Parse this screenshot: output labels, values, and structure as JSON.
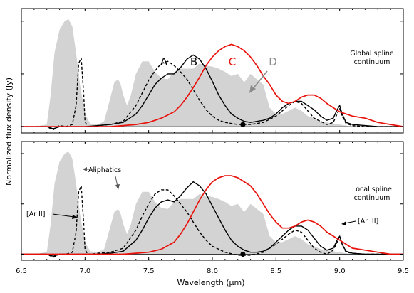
{
  "chart_data": {
    "type": "line",
    "xlabel": "Wavelength (μm)",
    "ylabel": "Normalized flux density (Jy)",
    "xlim": [
      6.5,
      9.5
    ],
    "xticks": [
      "6.5",
      "7.0",
      "7.5",
      "8.0",
      "8.5",
      "9.0",
      "9.5"
    ],
    "grid": false,
    "colors": {
      "pah": "#d3d3d3",
      "A": "#000000",
      "B": "#000000",
      "C": "#e8120b",
      "D": "#8a8a8a"
    },
    "panels": [
      {
        "id": "top",
        "annotation": "Global spline\ncontinuum",
        "annotation_lines": [
          "Global spline",
          "continuum"
        ],
        "ylim": [
          -0.06,
          1.12
        ],
        "series_labels": [
          "A",
          "B",
          "C",
          "D"
        ],
        "series": [
          {
            "key": "pah",
            "style": "filled",
            "x": [
              6.5,
              6.6,
              6.7,
              6.73,
              6.76,
              6.8,
              6.84,
              6.87,
              6.9,
              6.93,
              6.96,
              7.0,
              7.04,
              7.1,
              7.15,
              7.2,
              7.23,
              7.26,
              7.28,
              7.3,
              7.33,
              7.36,
              7.4,
              7.45,
              7.5,
              7.55,
              7.6,
              7.65,
              7.7,
              7.75,
              7.8,
              7.85,
              7.9,
              7.95,
              8.0,
              8.05,
              8.1,
              8.15,
              8.2,
              8.25,
              8.3,
              8.35,
              8.4,
              8.45,
              8.5,
              8.55,
              8.6,
              8.65,
              8.7,
              8.75,
              8.8,
              8.85,
              8.9,
              8.95,
              9.0,
              9.1,
              9.2,
              9.3,
              9.4,
              9.5
            ],
            "y": [
              0,
              0,
              0.02,
              0.3,
              0.7,
              0.92,
              1.0,
              1.02,
              0.95,
              0.7,
              0.4,
              0.12,
              0.03,
              0.02,
              0.05,
              0.28,
              0.42,
              0.45,
              0.4,
              0.3,
              0.2,
              0.3,
              0.5,
              0.62,
              0.62,
              0.52,
              0.46,
              0.45,
              0.52,
              0.55,
              0.55,
              0.55,
              0.6,
              0.58,
              0.57,
              0.55,
              0.52,
              0.48,
              0.5,
              0.42,
              0.5,
              0.45,
              0.4,
              0.18,
              0.12,
              0.12,
              0.15,
              0.18,
              0.15,
              0.1,
              0.08,
              0.05,
              0.04,
              0.03,
              0.02,
              0,
              0,
              0,
              0,
              0
            ]
          },
          {
            "key": "A",
            "style": "dashed",
            "x": [
              6.5,
              6.6,
              6.7,
              6.75,
              6.8,
              6.85,
              6.9,
              6.93,
              6.95,
              6.97,
              6.99,
              7.0,
              7.02,
              7.05,
              7.1,
              7.2,
              7.3,
              7.4,
              7.45,
              7.5,
              7.55,
              7.6,
              7.65,
              7.7,
              7.75,
              7.8,
              7.85,
              7.9,
              7.95,
              8.0,
              8.05,
              8.1,
              8.2,
              8.3,
              8.4,
              8.5,
              8.6,
              8.65,
              8.7,
              8.75,
              8.8,
              8.85,
              8.9,
              8.95,
              8.98,
              9.0,
              9.02,
              9.05,
              9.1,
              9.2,
              9.3,
              9.4,
              9.5
            ],
            "y": [
              0,
              0,
              0,
              -0.03,
              0.01,
              0.0,
              0.02,
              0.2,
              0.6,
              0.65,
              0.3,
              0.05,
              0.0,
              0.0,
              0.01,
              0.02,
              0.05,
              0.2,
              0.32,
              0.44,
              0.53,
              0.6,
              0.62,
              0.58,
              0.52,
              0.45,
              0.35,
              0.25,
              0.16,
              0.1,
              0.06,
              0.04,
              0.02,
              0.02,
              0.04,
              0.1,
              0.2,
              0.24,
              0.22,
              0.15,
              0.08,
              0.05,
              0.02,
              0.04,
              0.12,
              0.17,
              0.1,
              0.03,
              0.01,
              0,
              0,
              0,
              0
            ]
          },
          {
            "key": "B",
            "style": "solid",
            "x": [
              6.5,
              6.6,
              6.7,
              6.75,
              6.8,
              6.9,
              7.0,
              7.1,
              7.2,
              7.3,
              7.4,
              7.45,
              7.5,
              7.55,
              7.6,
              7.65,
              7.7,
              7.75,
              7.8,
              7.85,
              7.9,
              7.95,
              8.0,
              8.05,
              8.1,
              8.15,
              8.2,
              8.25,
              8.3,
              8.35,
              8.4,
              8.45,
              8.5,
              8.55,
              8.6,
              8.65,
              8.7,
              8.75,
              8.8,
              8.85,
              8.9,
              8.95,
              8.98,
              9.0,
              9.02,
              9.05,
              9.1,
              9.2,
              9.3,
              9.4,
              9.5
            ],
            "y": [
              0,
              0,
              0,
              -0.02,
              0.0,
              0.0,
              0.0,
              0.01,
              0.02,
              0.04,
              0.12,
              0.2,
              0.3,
              0.4,
              0.46,
              0.5,
              0.5,
              0.56,
              0.64,
              0.68,
              0.64,
              0.55,
              0.43,
              0.3,
              0.2,
              0.12,
              0.08,
              0.05,
              0.04,
              0.05,
              0.06,
              0.08,
              0.12,
              0.18,
              0.22,
              0.24,
              0.24,
              0.2,
              0.16,
              0.1,
              0.06,
              0.08,
              0.16,
              0.2,
              0.12,
              0.04,
              0.02,
              0.01,
              0,
              0,
              0
            ]
          },
          {
            "key": "C",
            "style": "solid",
            "x": [
              6.5,
              6.6,
              6.7,
              6.8,
              6.9,
              7.0,
              7.1,
              7.2,
              7.3,
              7.4,
              7.5,
              7.6,
              7.7,
              7.75,
              7.8,
              7.85,
              7.9,
              7.95,
              8.0,
              8.05,
              8.1,
              8.15,
              8.2,
              8.25,
              8.3,
              8.35,
              8.4,
              8.45,
              8.5,
              8.55,
              8.6,
              8.65,
              8.7,
              8.75,
              8.8,
              8.85,
              8.9,
              8.95,
              9.0,
              9.05,
              9.1,
              9.2,
              9.3,
              9.4,
              9.5
            ],
            "y": [
              0,
              0,
              0,
              0,
              0,
              0,
              0,
              0,
              0.01,
              0.02,
              0.04,
              0.08,
              0.14,
              0.2,
              0.28,
              0.37,
              0.47,
              0.58,
              0.66,
              0.72,
              0.76,
              0.78,
              0.76,
              0.72,
              0.66,
              0.58,
              0.48,
              0.4,
              0.3,
              0.24,
              0.22,
              0.24,
              0.28,
              0.3,
              0.3,
              0.27,
              0.22,
              0.18,
              0.14,
              0.12,
              0.1,
              0.08,
              0.04,
              0.02,
              0.0
            ]
          }
        ],
        "marker": {
          "x": 8.24,
          "y": 0.02
        }
      },
      {
        "id": "bottom",
        "annotation": "Local spline\ncontinuum",
        "annotation_lines": [
          "Local spline",
          "continuum"
        ],
        "ylim": [
          -0.06,
          1.12
        ],
        "notes": [
          "Aliphatics",
          "[Ar II]",
          "[Ar III]"
        ],
        "series": [
          {
            "key": "pah",
            "style": "filled",
            "x": [
              6.5,
              6.6,
              6.7,
              6.73,
              6.76,
              6.8,
              6.84,
              6.87,
              6.9,
              6.93,
              6.96,
              7.0,
              7.04,
              7.1,
              7.15,
              7.2,
              7.23,
              7.26,
              7.28,
              7.3,
              7.33,
              7.36,
              7.4,
              7.45,
              7.5,
              7.55,
              7.6,
              7.65,
              7.7,
              7.75,
              7.8,
              7.85,
              7.9,
              7.95,
              8.0,
              8.05,
              8.1,
              8.15,
              8.2,
              8.25,
              8.3,
              8.35,
              8.4,
              8.45,
              8.5,
              8.55,
              8.6,
              8.65,
              8.7,
              8.75,
              8.8,
              8.85,
              8.9,
              8.95,
              9.0,
              9.1,
              9.2,
              9.3,
              9.4,
              9.5
            ],
            "y": [
              0,
              0,
              0.02,
              0.3,
              0.7,
              0.92,
              1.0,
              1.02,
              0.95,
              0.7,
              0.4,
              0.12,
              0.03,
              0.02,
              0.05,
              0.28,
              0.42,
              0.45,
              0.4,
              0.3,
              0.2,
              0.3,
              0.5,
              0.62,
              0.62,
              0.52,
              0.46,
              0.45,
              0.52,
              0.55,
              0.55,
              0.55,
              0.6,
              0.58,
              0.57,
              0.55,
              0.52,
              0.48,
              0.5,
              0.42,
              0.5,
              0.45,
              0.4,
              0.18,
              0.12,
              0.12,
              0.15,
              0.18,
              0.15,
              0.1,
              0.08,
              0.05,
              0.04,
              0.03,
              0.02,
              0,
              0,
              0,
              0,
              0
            ]
          },
          {
            "key": "A",
            "style": "dashed",
            "x": [
              6.5,
              6.6,
              6.7,
              6.75,
              6.8,
              6.85,
              6.9,
              6.93,
              6.95,
              6.97,
              6.99,
              7.0,
              7.02,
              7.05,
              7.1,
              7.2,
              7.3,
              7.4,
              7.45,
              7.5,
              7.55,
              7.6,
              7.65,
              7.7,
              7.75,
              7.8,
              7.85,
              7.9,
              7.95,
              8.0,
              8.05,
              8.1,
              8.2,
              8.3,
              8.4,
              8.5,
              8.6,
              8.65,
              8.7,
              8.75,
              8.8,
              8.85,
              8.9,
              8.95,
              8.98,
              9.0,
              9.02,
              9.05,
              9.1,
              9.2,
              9.3,
              9.4,
              9.5
            ],
            "y": [
              0,
              0,
              0,
              -0.03,
              0.0,
              0.0,
              0.02,
              0.22,
              0.62,
              0.68,
              0.3,
              0.05,
              0.0,
              0.0,
              0.01,
              0.02,
              0.06,
              0.24,
              0.38,
              0.5,
              0.6,
              0.64,
              0.64,
              0.58,
              0.5,
              0.42,
              0.32,
              0.22,
              0.14,
              0.08,
              0.05,
              0.02,
              -0.01,
              -0.01,
              0.02,
              0.1,
              0.2,
              0.24,
              0.22,
              0.14,
              0.06,
              0.02,
              0.0,
              0.04,
              0.12,
              0.18,
              0.1,
              0.02,
              0.01,
              0,
              0,
              0,
              0
            ]
          },
          {
            "key": "B",
            "style": "solid",
            "x": [
              6.5,
              6.6,
              6.7,
              6.75,
              6.8,
              6.9,
              7.0,
              7.1,
              7.2,
              7.3,
              7.4,
              7.45,
              7.5,
              7.55,
              7.6,
              7.65,
              7.7,
              7.75,
              7.8,
              7.85,
              7.9,
              7.95,
              8.0,
              8.05,
              8.1,
              8.15,
              8.2,
              8.25,
              8.3,
              8.35,
              8.4,
              8.45,
              8.5,
              8.55,
              8.6,
              8.65,
              8.7,
              8.75,
              8.8,
              8.85,
              8.9,
              8.95,
              8.98,
              9.0,
              9.02,
              9.05,
              9.1,
              9.2,
              9.3,
              9.4,
              9.5
            ],
            "y": [
              0,
              0,
              0,
              -0.02,
              0.0,
              0.0,
              0.0,
              0.0,
              0.01,
              0.03,
              0.14,
              0.24,
              0.36,
              0.46,
              0.52,
              0.54,
              0.52,
              0.58,
              0.66,
              0.72,
              0.68,
              0.6,
              0.48,
              0.36,
              0.24,
              0.14,
              0.08,
              0.04,
              0.02,
              0.02,
              0.03,
              0.06,
              0.12,
              0.18,
              0.24,
              0.28,
              0.28,
              0.24,
              0.16,
              0.08,
              0.04,
              0.06,
              0.14,
              0.18,
              0.1,
              0.03,
              0.01,
              0.0,
              0,
              0,
              0
            ]
          },
          {
            "key": "C",
            "style": "solid",
            "x": [
              6.5,
              6.6,
              6.7,
              6.8,
              6.9,
              7.0,
              7.1,
              7.2,
              7.3,
              7.4,
              7.5,
              7.6,
              7.7,
              7.75,
              7.8,
              7.85,
              7.9,
              7.95,
              8.0,
              8.05,
              8.1,
              8.15,
              8.2,
              8.25,
              8.3,
              8.35,
              8.4,
              8.45,
              8.5,
              8.55,
              8.6,
              8.65,
              8.7,
              8.75,
              8.8,
              8.85,
              8.9,
              8.95,
              9.0,
              9.05,
              9.1,
              9.2,
              9.3,
              9.4,
              9.5
            ],
            "y": [
              0,
              0,
              0,
              0,
              0,
              0,
              0,
              0,
              0.0,
              0.01,
              0.02,
              0.05,
              0.12,
              0.2,
              0.3,
              0.42,
              0.54,
              0.64,
              0.72,
              0.76,
              0.78,
              0.78,
              0.76,
              0.72,
              0.68,
              0.6,
              0.5,
              0.4,
              0.32,
              0.26,
              0.26,
              0.28,
              0.32,
              0.34,
              0.32,
              0.28,
              0.22,
              0.18,
              0.14,
              0.1,
              0.06,
              0.04,
              0.02,
              0.0,
              0.0
            ]
          }
        ],
        "marker": {
          "x": 8.24,
          "y": 0.0
        }
      }
    ]
  }
}
